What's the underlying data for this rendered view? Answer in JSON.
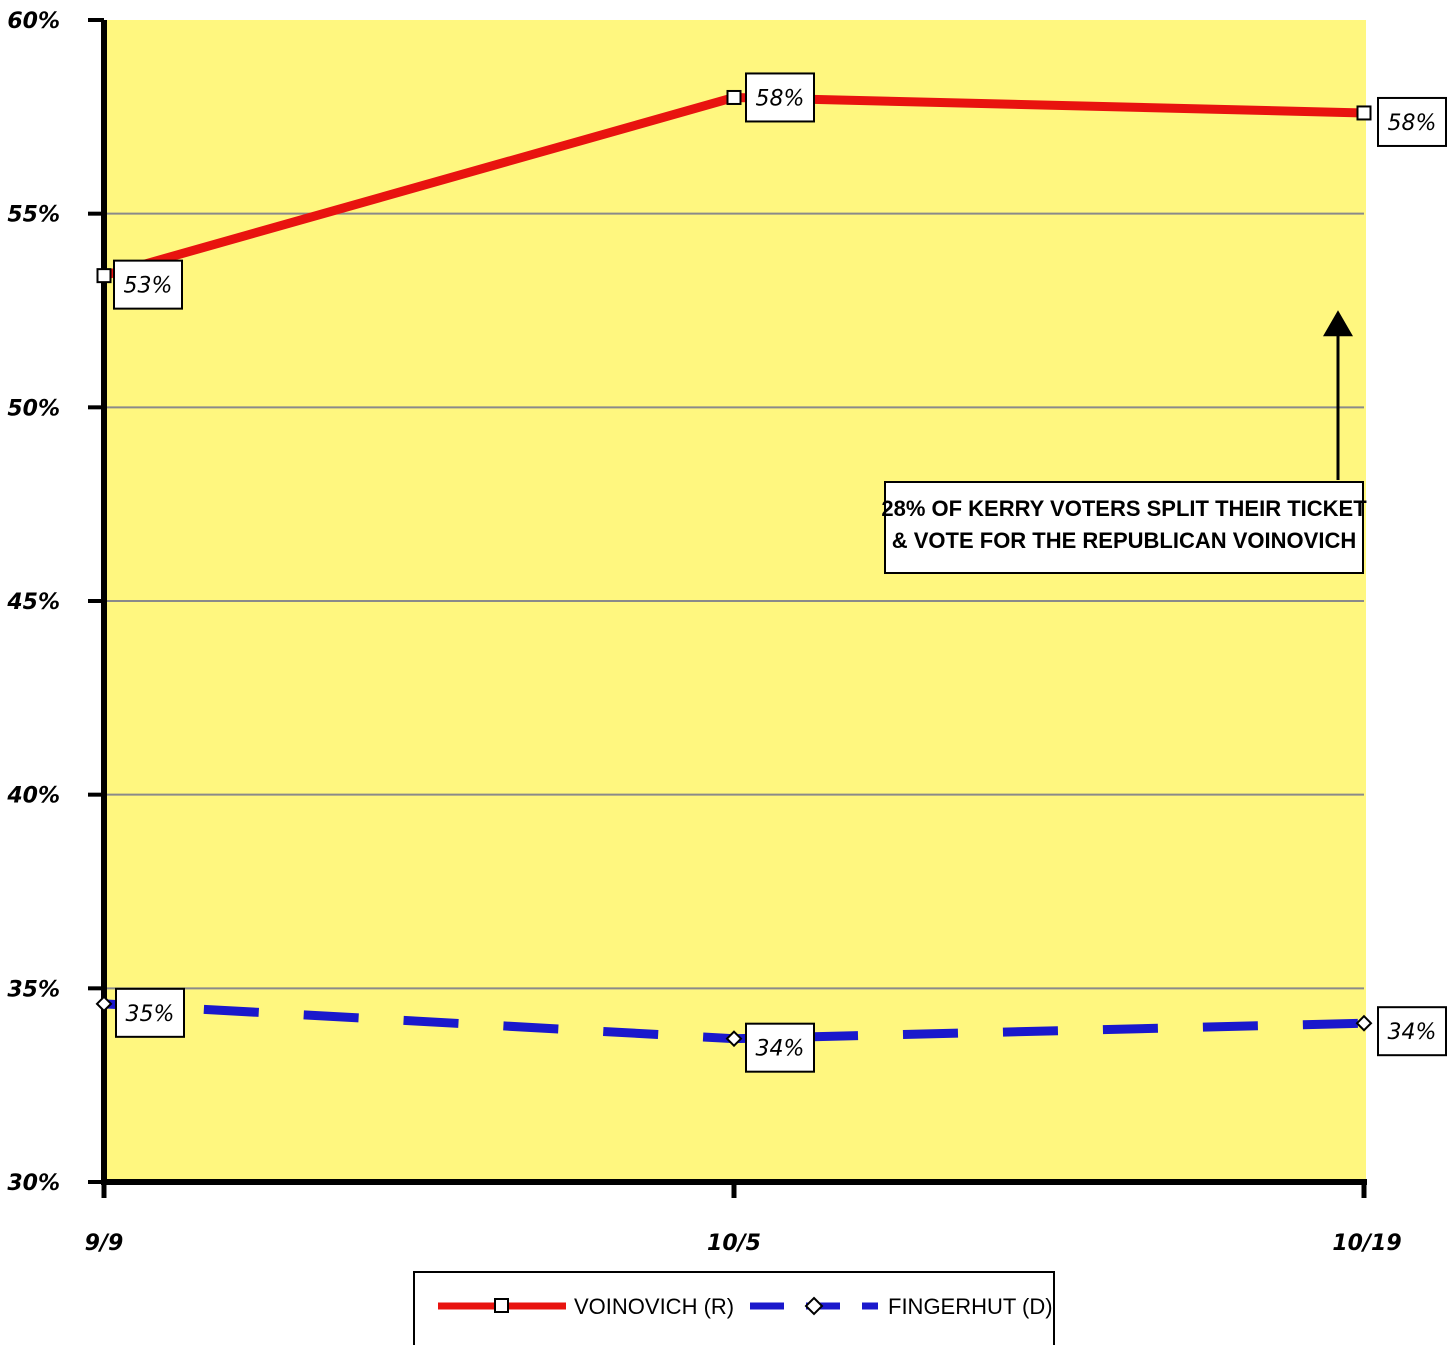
{
  "chart_data": {
    "type": "line",
    "title": "",
    "xlabel": "",
    "ylabel": "",
    "categories": [
      "9/9",
      "10/5",
      "10/19"
    ],
    "ylim": [
      30,
      60
    ],
    "yticks": [
      30,
      35,
      40,
      45,
      50,
      55,
      60
    ],
    "ytick_labels": [
      "30%",
      "35%",
      "40%",
      "45%",
      "50%",
      "55%",
      "60%"
    ],
    "grid": true,
    "plot_background": "#fff77f",
    "legend_position": "bottom",
    "series": [
      {
        "name": "VOINOVICH (R)",
        "values": [
          53.4,
          58.0,
          57.6
        ],
        "labels": [
          "53%",
          "58%",
          "58%"
        ],
        "color": "#e8130f",
        "style": "solid",
        "marker": "square"
      },
      {
        "name": "FINGERHUT (D)",
        "values": [
          34.6,
          33.7,
          34.1
        ],
        "labels": [
          "35%",
          "34%",
          "34%"
        ],
        "color": "#1a18cc",
        "style": "dashed",
        "marker": "diamond"
      }
    ],
    "annotation": {
      "lines": [
        "28% OF KERRY VOTERS SPLIT THEIR TICKET",
        "& VOTE FOR THE REPUBLICAN VOINOVICH"
      ],
      "arrow_target_category": "10/19",
      "arrow_target_value": 52.3
    }
  }
}
